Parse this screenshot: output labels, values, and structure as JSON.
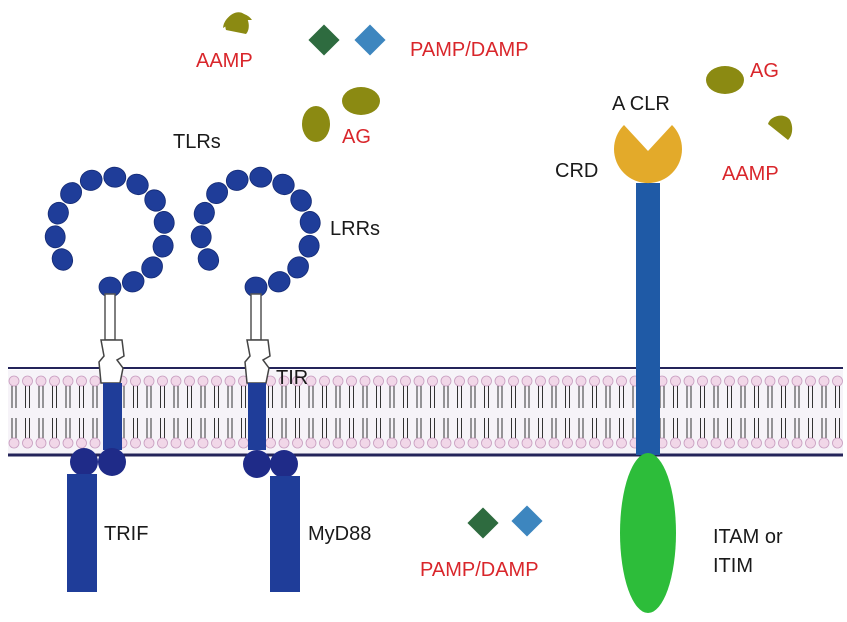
{
  "labels": {
    "aamp_top": "AAMP",
    "pamp_damp_top": "PAMP/DAMP",
    "ag_top": "AG",
    "tlrs": "TLRs",
    "lrrs": "LRRs",
    "tir": "TIR",
    "trif": "TRIF",
    "myd88": "MyD88",
    "pamp_damp_bottom": "PAMP/DAMP",
    "a_clr": "A CLR",
    "crd": "CRD",
    "ag_right": "AG",
    "aamp_right": "AAMP",
    "itam_line1": "ITAM or",
    "itam_line2": "ITIM"
  },
  "colors": {
    "receptor_blue": "#1f3d99",
    "clr_stalk_blue": "#1f5aa6",
    "crd_gold": "#e3aa2a",
    "itam_green": "#2dbd3a",
    "antigen_olive": "#8b8a12",
    "pamp_dark_green": "#2e6b3f",
    "pamp_light_blue": "#3d86bf",
    "label_red": "#d9262b",
    "membrane_head": "#f1d7e8",
    "membrane_line": "#24245a"
  }
}
